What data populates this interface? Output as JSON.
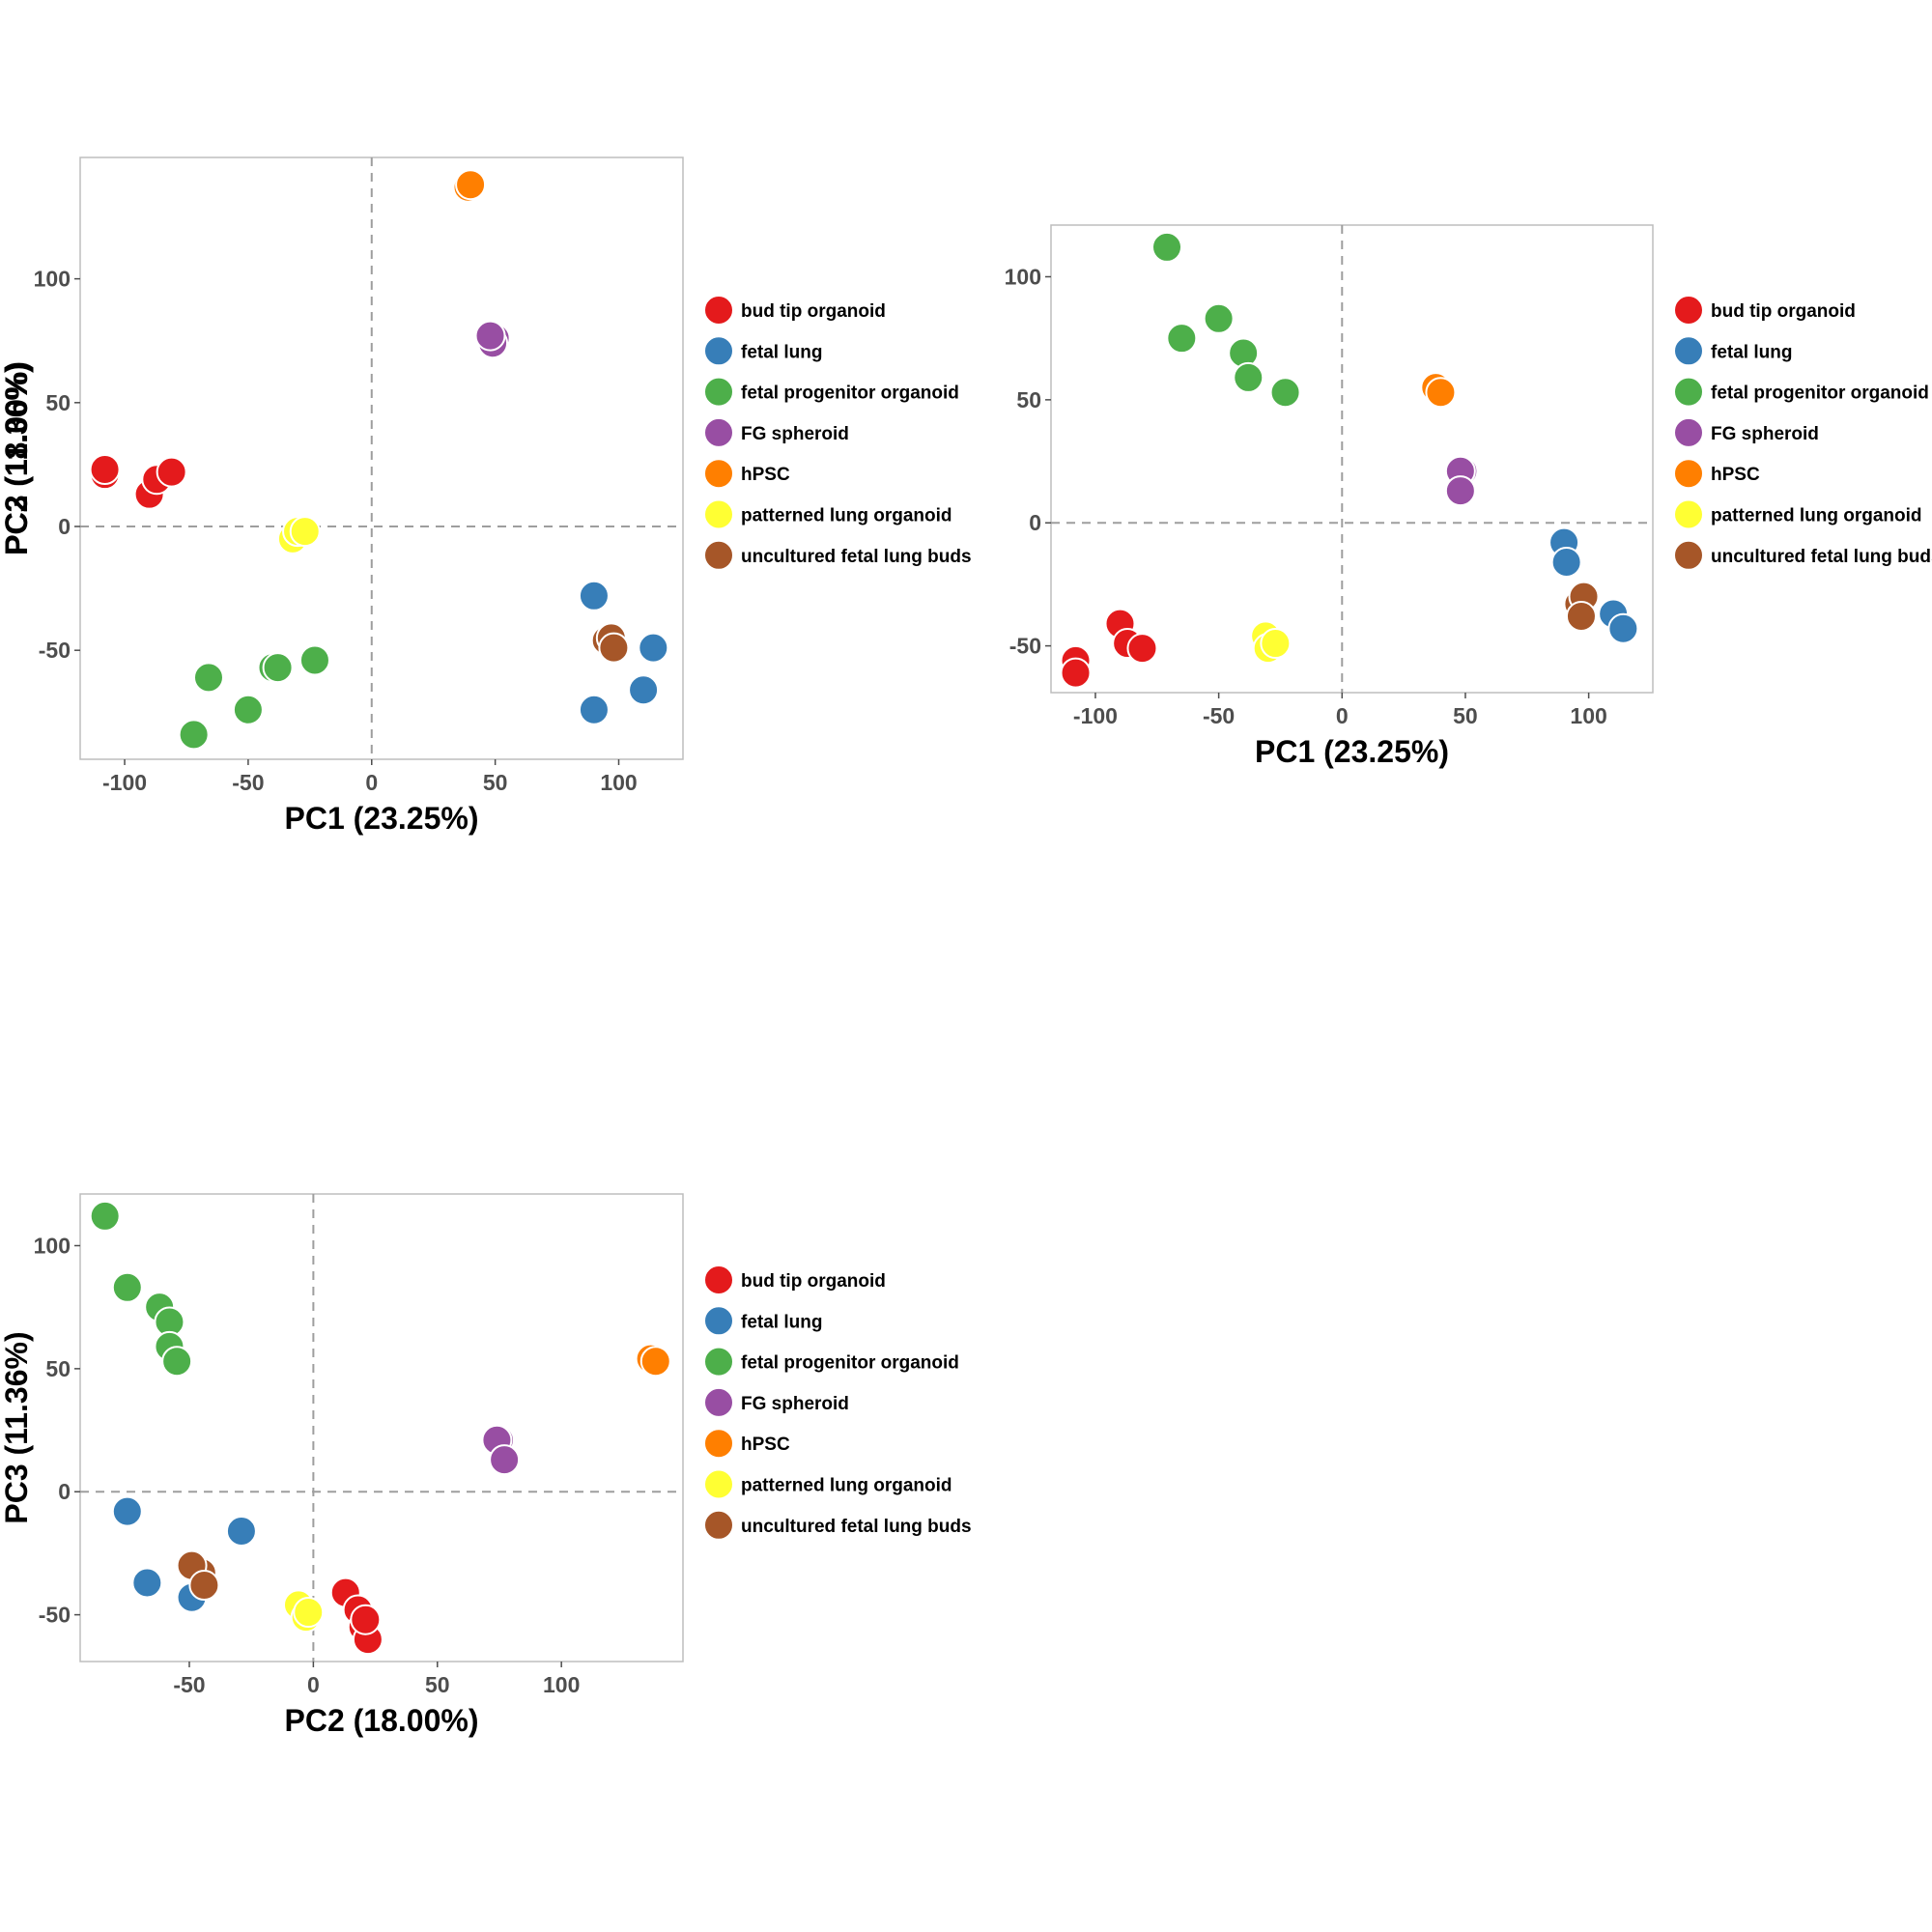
{
  "legend": {
    "bud tip organoid": "#e41a1c",
    "fetal lung": "#377eb8",
    "fetal progenitor organoid": "#4daf4a",
    "FG spheroid": "#984ea3",
    "hPSC": "#ff7f00",
    "patterned lung organoid": "#ffff33",
    "uncultured fetal lung buds": "#a65628"
  },
  "chart_data": [
    {
      "type": "scatter",
      "xlabel": "PC1 (23.25%)",
      "ylabel": "PC2 (18.00%)",
      "xlim": [
        -118,
        126
      ],
      "ylim": [
        -94,
        149
      ],
      "xticks": [
        -100,
        -50,
        0,
        50,
        100
      ],
      "yticks": [
        -50,
        0,
        50,
        100
      ],
      "reference_lines": {
        "x": 0,
        "y": 0
      },
      "grid": false,
      "legend_position": "right",
      "series": [
        {
          "name": "bud tip organoid",
          "points": [
            [
              -108,
              21
            ],
            [
              -108,
              23
            ],
            [
              -90,
              13
            ],
            [
              -87,
              19
            ],
            [
              -81,
              22
            ]
          ]
        },
        {
          "name": "fetal lung",
          "points": [
            [
              90,
              -28
            ],
            [
              90,
              -74
            ],
            [
              110,
              -66
            ],
            [
              114,
              -49
            ]
          ]
        },
        {
          "name": "fetal progenitor organoid",
          "points": [
            [
              -72,
              -84
            ],
            [
              -66,
              -61
            ],
            [
              -50,
              -74
            ],
            [
              -40,
              -57
            ],
            [
              -38,
              -57
            ],
            [
              -23,
              -54
            ]
          ]
        },
        {
          "name": "FG spheroid",
          "points": [
            [
              50,
              76
            ],
            [
              49,
              74
            ],
            [
              48,
              77
            ]
          ]
        },
        {
          "name": "hPSC",
          "points": [
            [
              39,
              137
            ],
            [
              40,
              138
            ]
          ]
        },
        {
          "name": "patterned lung organoid",
          "points": [
            [
              -32,
              -5
            ],
            [
              -30,
              -2
            ],
            [
              -27,
              -2
            ]
          ]
        },
        {
          "name": "uncultured fetal lung buds",
          "points": [
            [
              95,
              -46
            ],
            [
              97,
              -45
            ],
            [
              98,
              -49
            ]
          ]
        }
      ]
    },
    {
      "type": "scatter",
      "xlabel": "PC1 (23.25%)",
      "ylabel": "PC3 (11.36%)",
      "xlim": [
        -118,
        126
      ],
      "ylim": [
        -69,
        121
      ],
      "xticks": [
        -100,
        -50,
        0,
        50,
        100
      ],
      "yticks": [
        -50,
        0,
        50,
        100
      ],
      "reference_lines": {
        "x": 0,
        "y": 0
      },
      "grid": false,
      "legend_position": "right",
      "series": [
        {
          "name": "bud tip organoid",
          "points": [
            [
              -108,
              -56
            ],
            [
              -108,
              -61
            ],
            [
              -90,
              -41
            ],
            [
              -87,
              -49
            ],
            [
              -81,
              -51
            ]
          ]
        },
        {
          "name": "fetal lung",
          "points": [
            [
              90,
              -8
            ],
            [
              91,
              -16
            ],
            [
              110,
              -37
            ],
            [
              114,
              -43
            ]
          ]
        },
        {
          "name": "fetal progenitor organoid",
          "points": [
            [
              -71,
              112
            ],
            [
              -65,
              75
            ],
            [
              -50,
              83
            ],
            [
              -40,
              69
            ],
            [
              -38,
              59
            ],
            [
              -23,
              53
            ]
          ]
        },
        {
          "name": "FG spheroid",
          "points": [
            [
              49,
              21
            ],
            [
              48,
              21
            ],
            [
              48,
              13
            ]
          ]
        },
        {
          "name": "hPSC",
          "points": [
            [
              38,
              55
            ],
            [
              40,
              53
            ]
          ]
        },
        {
          "name": "patterned lung organoid",
          "points": [
            [
              -31,
              -46
            ],
            [
              -30,
              -51
            ],
            [
              -27,
              -49
            ]
          ]
        },
        {
          "name": "uncultured fetal lung buds",
          "points": [
            [
              96,
              -33
            ],
            [
              98,
              -30
            ],
            [
              97,
              -38
            ]
          ]
        }
      ]
    },
    {
      "type": "scatter",
      "xlabel": "PC2 (18.00%)",
      "ylabel": "PC3 (11.36%)",
      "xlim": [
        -94,
        149
      ],
      "ylim": [
        -69,
        121
      ],
      "xticks": [
        -50,
        0,
        50,
        100
      ],
      "yticks": [
        -50,
        0,
        50,
        100
      ],
      "reference_lines": {
        "x": 0,
        "y": 0
      },
      "grid": false,
      "legend_position": "right",
      "series": [
        {
          "name": "bud tip organoid",
          "points": [
            [
              13,
              -41
            ],
            [
              18,
              -48
            ],
            [
              20,
              -55
            ],
            [
              22,
              -60
            ],
            [
              21,
              -52
            ]
          ]
        },
        {
          "name": "fetal lung",
          "points": [
            [
              -75,
              -8
            ],
            [
              -29,
              -16
            ],
            [
              -67,
              -37
            ],
            [
              -49,
              -43
            ]
          ]
        },
        {
          "name": "fetal progenitor organoid",
          "points": [
            [
              -84,
              112
            ],
            [
              -75,
              83
            ],
            [
              -62,
              75
            ],
            [
              -58,
              69
            ],
            [
              -58,
              59
            ],
            [
              -55,
              53
            ]
          ]
        },
        {
          "name": "FG spheroid",
          "points": [
            [
              75,
              21
            ],
            [
              74,
              21
            ],
            [
              77,
              13
            ]
          ]
        },
        {
          "name": "hPSC",
          "points": [
            [
              136,
              54
            ],
            [
              138,
              53
            ]
          ]
        },
        {
          "name": "patterned lung organoid",
          "points": [
            [
              -6,
              -46
            ],
            [
              -3,
              -51
            ],
            [
              -2,
              -49
            ]
          ]
        },
        {
          "name": "uncultured fetal lung buds",
          "points": [
            [
              -45,
              -33
            ],
            [
              -49,
              -30
            ],
            [
              -44,
              -38
            ]
          ]
        }
      ]
    }
  ]
}
